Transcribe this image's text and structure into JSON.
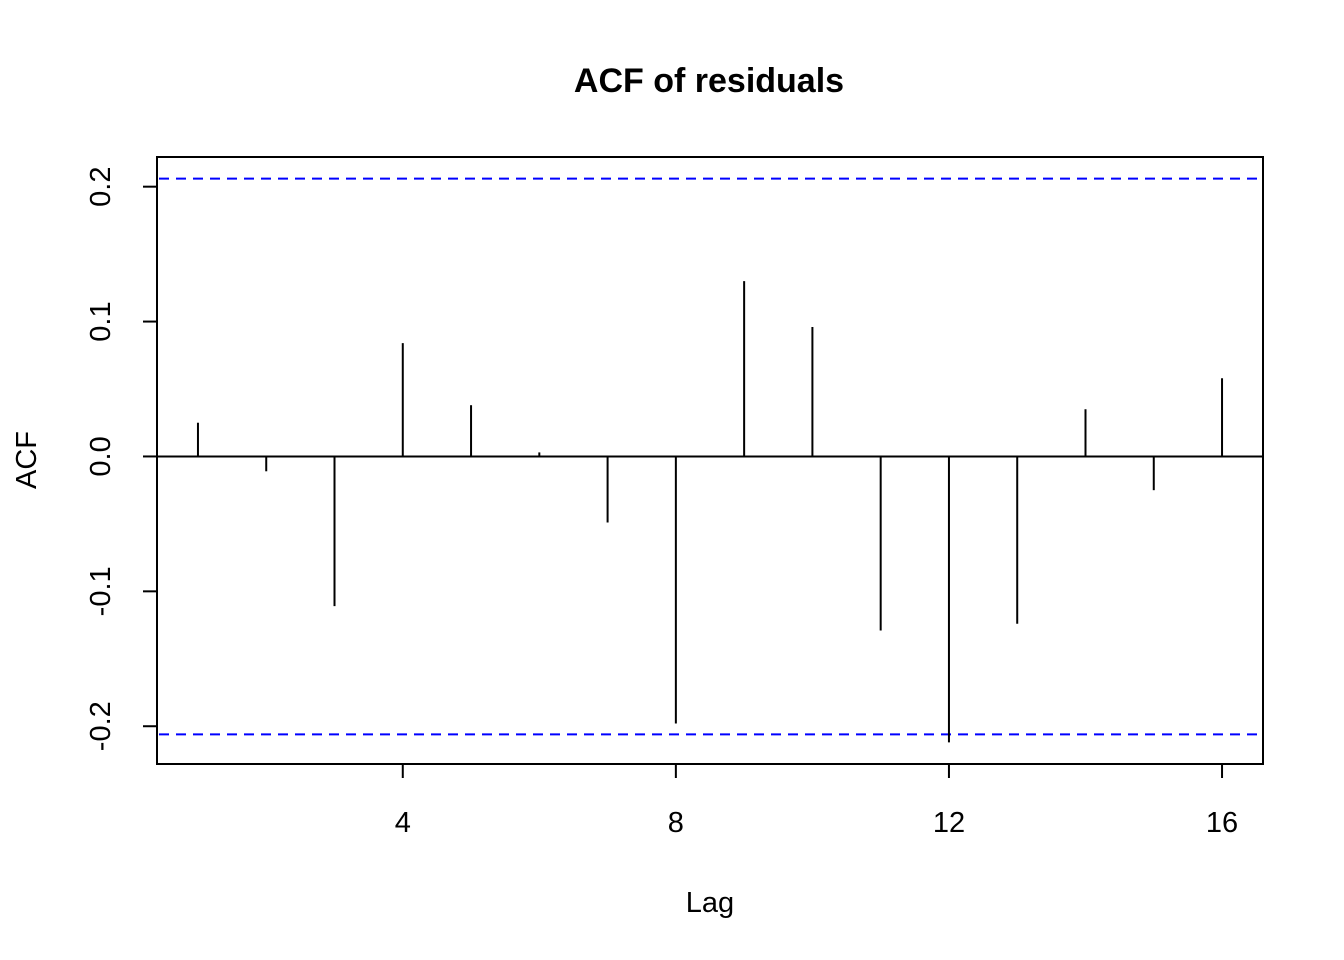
{
  "chart_data": {
    "type": "bar",
    "subtype": "acf-stem",
    "title": "ACF of residuals",
    "xlabel": "Lag",
    "ylabel": "ACF",
    "xlim": [
      0.4,
      16.6
    ],
    "ylim": [
      -0.228,
      0.222
    ],
    "x_ticks": [
      4,
      8,
      12,
      16
    ],
    "y_ticks": [
      -0.2,
      -0.1,
      0.0,
      0.1,
      0.2
    ],
    "x_tick_labels": [
      "4",
      "8",
      "12",
      "16"
    ],
    "y_tick_labels": [
      "-0.2",
      "-0.1",
      "0.0",
      "0.1",
      "0.2"
    ],
    "lags": [
      1,
      2,
      3,
      4,
      5,
      6,
      7,
      8,
      9,
      10,
      11,
      12,
      13,
      14,
      15,
      16
    ],
    "values": [
      0.025,
      -0.011,
      -0.111,
      0.084,
      0.038,
      0.003,
      -0.049,
      -0.198,
      0.13,
      0.096,
      -0.129,
      -0.212,
      -0.124,
      0.035,
      -0.025,
      0.058
    ],
    "confidence_bound": 0.206,
    "zero_line": true,
    "grid": false,
    "colors": {
      "stems": "#000000",
      "confidence_lines": "#0000ff",
      "axes": "#000000",
      "background": "#ffffff"
    }
  }
}
